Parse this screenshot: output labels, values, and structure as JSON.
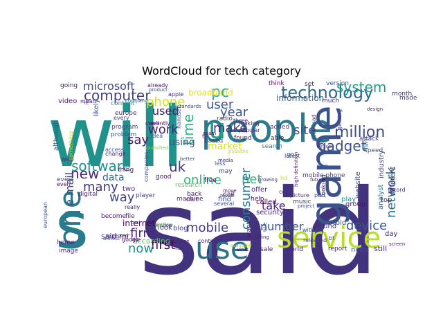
{
  "title": "WordCloud for tech category",
  "chart_data": {
    "type": "wordcloud",
    "title": "WordCloud for tech category",
    "words": [
      {
        "text": "said",
        "color": "#43337f"
      },
      {
        "text": "will",
        "color": "#21918c"
      },
      {
        "text": "people",
        "color": "#2c7a8e"
      },
      {
        "text": "s",
        "color": "#287c8e"
      },
      {
        "text": "game",
        "color": "#3b528b"
      },
      {
        "text": "one",
        "color": "#2a788e"
      },
      {
        "text": "use",
        "color": "#2d708e"
      },
      {
        "text": "service",
        "color": "#b8de29"
      },
      {
        "text": "technology",
        "color": "#31688e"
      },
      {
        "text": "computer",
        "color": "#433e85"
      },
      {
        "text": "microsoft",
        "color": "#3e4a89"
      },
      {
        "text": "phone",
        "color": "#d2e21b"
      },
      {
        "text": "pc",
        "color": "#2ab07f"
      },
      {
        "text": "user",
        "color": "#3b528b"
      },
      {
        "text": "year",
        "color": "#3a548c"
      },
      {
        "text": "u",
        "color": "#20a386"
      },
      {
        "text": "system",
        "color": "#1f9e89"
      },
      {
        "text": "million",
        "color": "#3e4989"
      },
      {
        "text": "site",
        "color": "#3e4a89"
      },
      {
        "text": "gadget",
        "color": "#3b528b"
      },
      {
        "text": "time",
        "color": "#2db27d"
      },
      {
        "text": "make",
        "color": "#472c7a"
      },
      {
        "text": "work",
        "color": "#482475"
      },
      {
        "text": "used",
        "color": "#482071"
      },
      {
        "text": "software",
        "color": "#21918c"
      },
      {
        "text": "new",
        "color": "#482878"
      },
      {
        "text": "say",
        "color": "#48186a"
      },
      {
        "text": "using",
        "color": "#3b528b"
      },
      {
        "text": "market",
        "color": "#d8e219"
      },
      {
        "text": "net",
        "color": "#35b779"
      },
      {
        "text": "uk",
        "color": "#443a83"
      },
      {
        "text": "online",
        "color": "#35b779"
      },
      {
        "text": "data",
        "color": "#31688e"
      },
      {
        "text": "many",
        "color": "#46337e"
      },
      {
        "text": "way",
        "color": "#414487"
      },
      {
        "text": "mobile",
        "color": "#443983"
      },
      {
        "text": "consumer",
        "color": "#2a788e"
      },
      {
        "text": "network",
        "color": "#2c728e"
      },
      {
        "text": "take",
        "color": "#482878"
      },
      {
        "text": "number",
        "color": "#3b528b"
      },
      {
        "text": "device",
        "color": "#38598c"
      },
      {
        "text": "firm",
        "color": "#482576"
      },
      {
        "text": "first",
        "color": "#440154"
      },
      {
        "text": "now",
        "color": "#21918c"
      },
      {
        "text": "internet",
        "color": "#440154"
      },
      {
        "text": "e mail",
        "color": "#3e4a89"
      },
      {
        "text": "said mr",
        "color": "#46307e"
      },
      {
        "text": "according",
        "color": "#5ec962"
      },
      {
        "text": "information",
        "color": "#31688e"
      },
      {
        "text": "two",
        "color": "#46327e"
      },
      {
        "text": "look",
        "color": "#46327e"
      },
      {
        "text": "video",
        "color": "#482071"
      },
      {
        "text": "going",
        "color": "#48186a"
      },
      {
        "text": "content",
        "color": "#21918c"
      },
      {
        "text": "broadband",
        "color": "#e5e419"
      },
      {
        "text": "added",
        "color": "#433e85"
      },
      {
        "text": "able",
        "color": "#46075a"
      },
      {
        "text": "search",
        "color": "#277f8e"
      },
      {
        "text": "free",
        "color": "#440154"
      },
      {
        "text": "call",
        "color": "#46337e"
      },
      {
        "text": "find",
        "color": "#3b528b"
      },
      {
        "text": "help",
        "color": "#46085c"
      },
      {
        "text": "security",
        "color": "#482475"
      },
      {
        "text": "called",
        "color": "#450559"
      },
      {
        "text": "offer",
        "color": "#482878"
      },
      {
        "text": "music",
        "color": "#46327e"
      },
      {
        "text": "mobile phone",
        "color": "#433e85"
      },
      {
        "text": "film",
        "color": "#2c728e"
      },
      {
        "text": "website",
        "color": "#3e4a89"
      },
      {
        "text": "play",
        "color": "#21918c"
      },
      {
        "text": "group",
        "color": "#471365"
      },
      {
        "text": "analyst",
        "color": "#2c728e"
      },
      {
        "text": "industry",
        "color": "#3e4a89"
      },
      {
        "text": "around",
        "color": "#46327e"
      },
      {
        "text": "told",
        "color": "#3e4a89"
      },
      {
        "text": "report",
        "color": "#481b6d"
      },
      {
        "text": "need",
        "color": "#3e4a89"
      },
      {
        "text": "still",
        "color": "#482677"
      },
      {
        "text": "world",
        "color": "#482475"
      },
      {
        "text": "sale",
        "color": "#481a6c"
      },
      {
        "text": "blog",
        "color": "#433e85"
      },
      {
        "text": "player",
        "color": "#433e85"
      },
      {
        "text": "digital",
        "color": "#481f70"
      },
      {
        "text": "good",
        "color": "#481467"
      },
      {
        "text": "thing",
        "color": "#481769"
      },
      {
        "text": "program",
        "color": "#3e4989"
      },
      {
        "text": "problem",
        "color": "#3b528b"
      },
      {
        "text": "europe",
        "color": "#482878"
      },
      {
        "text": "every",
        "color": "#433e85"
      },
      {
        "text": "apple",
        "color": "#482878"
      },
      {
        "text": "already",
        "color": "#471063"
      },
      {
        "text": "radio",
        "color": "#46337e"
      },
      {
        "text": "based",
        "color": "#46337e"
      },
      {
        "text": "found",
        "color": "#482071"
      },
      {
        "text": "version",
        "color": "#3b528b"
      },
      {
        "text": "set",
        "color": "#481467"
      },
      {
        "text": "think",
        "color": "#471063"
      },
      {
        "text": "month",
        "color": "#46327e"
      },
      {
        "text": "made",
        "color": "#433e85"
      },
      {
        "text": "much",
        "color": "#482475"
      },
      {
        "text": "attack",
        "color": "#433e85"
      },
      {
        "text": "machine",
        "color": "#46337e"
      },
      {
        "text": "research",
        "color": "#5ec962"
      },
      {
        "text": "mean",
        "color": "#481f70"
      },
      {
        "text": "company",
        "color": "#2a788e"
      },
      {
        "text": "become",
        "color": "#481769"
      },
      {
        "text": "file",
        "color": "#46327e"
      },
      {
        "text": "google",
        "color": "#46085c"
      },
      {
        "text": "home",
        "color": "#482475"
      },
      {
        "text": "image",
        "color": "#482878"
      },
      {
        "text": "even",
        "color": "#3b528b"
      },
      {
        "text": "really",
        "color": "#482071"
      },
      {
        "text": "currently",
        "color": "#440154"
      },
      {
        "text": "launched",
        "color": "#7ad151"
      },
      {
        "text": "day",
        "color": "#482677"
      },
      {
        "text": "top",
        "color": "#482071"
      },
      {
        "text": "virus",
        "color": "#46085c"
      },
      {
        "text": "released",
        "color": "#3e4a89"
      },
      {
        "text": "project",
        "color": "#3e4a89"
      },
      {
        "text": "handset",
        "color": "#3e4a89"
      },
      {
        "text": "looking",
        "color": "#481a6c"
      },
      {
        "text": "even",
        "color": "#46085c"
      },
      {
        "text": "access",
        "color": "#3b528b"
      },
      {
        "text": "change",
        "color": "#482475"
      },
      {
        "text": "screen",
        "color": "#481f70"
      },
      {
        "text": "window",
        "color": "#46327e"
      },
      {
        "text": "control",
        "color": "#482878"
      },
      {
        "text": "back",
        "color": "#481467"
      },
      {
        "text": "start",
        "color": "#481769"
      },
      {
        "text": "spam",
        "color": "#46085c"
      },
      {
        "text": "tv",
        "color": "#46327e"
      },
      {
        "text": "possible",
        "color": "#bddf26"
      },
      {
        "text": "may",
        "color": "#46327e"
      },
      {
        "text": "better",
        "color": "#3b528b"
      },
      {
        "text": "less",
        "color": "#3b528b"
      },
      {
        "text": "media",
        "color": "#482475"
      },
      {
        "text": "latest",
        "color": "#46327e"
      },
      {
        "text": "move",
        "color": "#481467"
      },
      {
        "text": "result",
        "color": "#482878"
      },
      {
        "text": "several",
        "color": "#3e4a89"
      },
      {
        "text": "standards",
        "color": "#3e4a89"
      },
      {
        "text": "likely",
        "color": "#3b528b"
      },
      {
        "text": "want",
        "color": "#481467"
      },
      {
        "text": "go",
        "color": "#2c728e"
      },
      {
        "text": "see",
        "color": "#3b528b"
      },
      {
        "text": "part",
        "color": "#3e4a89"
      },
      {
        "text": "future",
        "color": "#481467"
      },
      {
        "text": "speed",
        "color": "#3b528b"
      },
      {
        "text": "different",
        "color": "#482475"
      },
      {
        "text": "design",
        "color": "#482878"
      },
      {
        "text": "record",
        "color": "#46327e"
      },
      {
        "text": "expected",
        "color": "#481f70"
      },
      {
        "text": "almost",
        "color": "#3b528b"
      },
      {
        "text": "title",
        "color": "#3e4a89"
      },
      {
        "text": "cost",
        "color": "#46327e"
      },
      {
        "text": "well",
        "color": "#482878"
      },
      {
        "text": "idea",
        "color": "#3b528b"
      },
      {
        "text": "product",
        "color": "#3e4a89"
      },
      {
        "text": "three",
        "color": "#482475"
      },
      {
        "text": "making",
        "color": "#481a6c"
      },
      {
        "text": "although",
        "color": "#3b528b"
      },
      {
        "text": "companies",
        "color": "#3e4a89"
      },
      {
        "text": "getting",
        "color": "#5ec962"
      },
      {
        "text": "tool",
        "color": "#3e4a89"
      },
      {
        "text": "big",
        "color": "#481467"
      },
      {
        "text": "web",
        "color": "#46327e"
      },
      {
        "text": "something",
        "color": "#b5de2b"
      },
      {
        "text": "european",
        "color": "#3b528b"
      },
      {
        "text": "picture",
        "color": "#482878"
      },
      {
        "text": "message",
        "color": "#482475"
      },
      {
        "text": "list",
        "color": "#481a6c"
      },
      {
        "text": "popular",
        "color": "#482878"
      },
      {
        "text": "gaming",
        "color": "#3e4a89"
      },
      {
        "text": "download",
        "color": "#46327e"
      },
      {
        "text": "hd",
        "color": "#bddf26"
      },
      {
        "text": "without",
        "color": "#3b528b"
      },
      {
        "text": "bt",
        "color": "#3e4a89"
      },
      {
        "text": "including",
        "color": "#482071"
      },
      {
        "text": "available",
        "color": "#bddf26"
      },
      {
        "text": "growing",
        "color": "#482878"
      },
      {
        "text": "high definition",
        "color": "#482475"
      },
      {
        "text": "viruses",
        "color": "#46327e"
      },
      {
        "text": "small",
        "color": "#46327e"
      },
      {
        "text": "re",
        "color": "#46327e"
      }
    ]
  }
}
